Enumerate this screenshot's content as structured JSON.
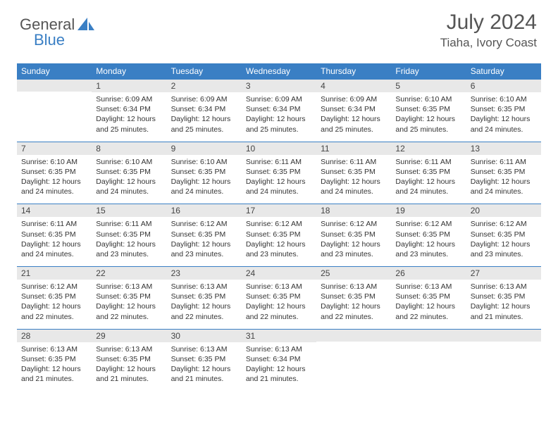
{
  "logo": {
    "text1": "General",
    "text2": "Blue"
  },
  "header": {
    "month": "July 2024",
    "location": "Tiaha, Ivory Coast"
  },
  "colors": {
    "header_bg": "#3a7fc4",
    "header_text": "#ffffff",
    "daynum_bg": "#e8e8e8",
    "body_bg": "#ffffff",
    "row_border": "#3a7fc4",
    "text": "#333333"
  },
  "calendar": {
    "days_of_week": [
      "Sunday",
      "Monday",
      "Tuesday",
      "Wednesday",
      "Thursday",
      "Friday",
      "Saturday"
    ],
    "weeks": [
      [
        null,
        {
          "n": "1",
          "sunrise": "Sunrise: 6:09 AM",
          "sunset": "Sunset: 6:34 PM",
          "dl1": "Daylight: 12 hours",
          "dl2": "and 25 minutes."
        },
        {
          "n": "2",
          "sunrise": "Sunrise: 6:09 AM",
          "sunset": "Sunset: 6:34 PM",
          "dl1": "Daylight: 12 hours",
          "dl2": "and 25 minutes."
        },
        {
          "n": "3",
          "sunrise": "Sunrise: 6:09 AM",
          "sunset": "Sunset: 6:34 PM",
          "dl1": "Daylight: 12 hours",
          "dl2": "and 25 minutes."
        },
        {
          "n": "4",
          "sunrise": "Sunrise: 6:09 AM",
          "sunset": "Sunset: 6:34 PM",
          "dl1": "Daylight: 12 hours",
          "dl2": "and 25 minutes."
        },
        {
          "n": "5",
          "sunrise": "Sunrise: 6:10 AM",
          "sunset": "Sunset: 6:35 PM",
          "dl1": "Daylight: 12 hours",
          "dl2": "and 25 minutes."
        },
        {
          "n": "6",
          "sunrise": "Sunrise: 6:10 AM",
          "sunset": "Sunset: 6:35 PM",
          "dl1": "Daylight: 12 hours",
          "dl2": "and 24 minutes."
        }
      ],
      [
        {
          "n": "7",
          "sunrise": "Sunrise: 6:10 AM",
          "sunset": "Sunset: 6:35 PM",
          "dl1": "Daylight: 12 hours",
          "dl2": "and 24 minutes."
        },
        {
          "n": "8",
          "sunrise": "Sunrise: 6:10 AM",
          "sunset": "Sunset: 6:35 PM",
          "dl1": "Daylight: 12 hours",
          "dl2": "and 24 minutes."
        },
        {
          "n": "9",
          "sunrise": "Sunrise: 6:10 AM",
          "sunset": "Sunset: 6:35 PM",
          "dl1": "Daylight: 12 hours",
          "dl2": "and 24 minutes."
        },
        {
          "n": "10",
          "sunrise": "Sunrise: 6:11 AM",
          "sunset": "Sunset: 6:35 PM",
          "dl1": "Daylight: 12 hours",
          "dl2": "and 24 minutes."
        },
        {
          "n": "11",
          "sunrise": "Sunrise: 6:11 AM",
          "sunset": "Sunset: 6:35 PM",
          "dl1": "Daylight: 12 hours",
          "dl2": "and 24 minutes."
        },
        {
          "n": "12",
          "sunrise": "Sunrise: 6:11 AM",
          "sunset": "Sunset: 6:35 PM",
          "dl1": "Daylight: 12 hours",
          "dl2": "and 24 minutes."
        },
        {
          "n": "13",
          "sunrise": "Sunrise: 6:11 AM",
          "sunset": "Sunset: 6:35 PM",
          "dl1": "Daylight: 12 hours",
          "dl2": "and 24 minutes."
        }
      ],
      [
        {
          "n": "14",
          "sunrise": "Sunrise: 6:11 AM",
          "sunset": "Sunset: 6:35 PM",
          "dl1": "Daylight: 12 hours",
          "dl2": "and 24 minutes."
        },
        {
          "n": "15",
          "sunrise": "Sunrise: 6:11 AM",
          "sunset": "Sunset: 6:35 PM",
          "dl1": "Daylight: 12 hours",
          "dl2": "and 23 minutes."
        },
        {
          "n": "16",
          "sunrise": "Sunrise: 6:12 AM",
          "sunset": "Sunset: 6:35 PM",
          "dl1": "Daylight: 12 hours",
          "dl2": "and 23 minutes."
        },
        {
          "n": "17",
          "sunrise": "Sunrise: 6:12 AM",
          "sunset": "Sunset: 6:35 PM",
          "dl1": "Daylight: 12 hours",
          "dl2": "and 23 minutes."
        },
        {
          "n": "18",
          "sunrise": "Sunrise: 6:12 AM",
          "sunset": "Sunset: 6:35 PM",
          "dl1": "Daylight: 12 hours",
          "dl2": "and 23 minutes."
        },
        {
          "n": "19",
          "sunrise": "Sunrise: 6:12 AM",
          "sunset": "Sunset: 6:35 PM",
          "dl1": "Daylight: 12 hours",
          "dl2": "and 23 minutes."
        },
        {
          "n": "20",
          "sunrise": "Sunrise: 6:12 AM",
          "sunset": "Sunset: 6:35 PM",
          "dl1": "Daylight: 12 hours",
          "dl2": "and 23 minutes."
        }
      ],
      [
        {
          "n": "21",
          "sunrise": "Sunrise: 6:12 AM",
          "sunset": "Sunset: 6:35 PM",
          "dl1": "Daylight: 12 hours",
          "dl2": "and 22 minutes."
        },
        {
          "n": "22",
          "sunrise": "Sunrise: 6:13 AM",
          "sunset": "Sunset: 6:35 PM",
          "dl1": "Daylight: 12 hours",
          "dl2": "and 22 minutes."
        },
        {
          "n": "23",
          "sunrise": "Sunrise: 6:13 AM",
          "sunset": "Sunset: 6:35 PM",
          "dl1": "Daylight: 12 hours",
          "dl2": "and 22 minutes."
        },
        {
          "n": "24",
          "sunrise": "Sunrise: 6:13 AM",
          "sunset": "Sunset: 6:35 PM",
          "dl1": "Daylight: 12 hours",
          "dl2": "and 22 minutes."
        },
        {
          "n": "25",
          "sunrise": "Sunrise: 6:13 AM",
          "sunset": "Sunset: 6:35 PM",
          "dl1": "Daylight: 12 hours",
          "dl2": "and 22 minutes."
        },
        {
          "n": "26",
          "sunrise": "Sunrise: 6:13 AM",
          "sunset": "Sunset: 6:35 PM",
          "dl1": "Daylight: 12 hours",
          "dl2": "and 22 minutes."
        },
        {
          "n": "27",
          "sunrise": "Sunrise: 6:13 AM",
          "sunset": "Sunset: 6:35 PM",
          "dl1": "Daylight: 12 hours",
          "dl2": "and 21 minutes."
        }
      ],
      [
        {
          "n": "28",
          "sunrise": "Sunrise: 6:13 AM",
          "sunset": "Sunset: 6:35 PM",
          "dl1": "Daylight: 12 hours",
          "dl2": "and 21 minutes."
        },
        {
          "n": "29",
          "sunrise": "Sunrise: 6:13 AM",
          "sunset": "Sunset: 6:35 PM",
          "dl1": "Daylight: 12 hours",
          "dl2": "and 21 minutes."
        },
        {
          "n": "30",
          "sunrise": "Sunrise: 6:13 AM",
          "sunset": "Sunset: 6:35 PM",
          "dl1": "Daylight: 12 hours",
          "dl2": "and 21 minutes."
        },
        {
          "n": "31",
          "sunrise": "Sunrise: 6:13 AM",
          "sunset": "Sunset: 6:34 PM",
          "dl1": "Daylight: 12 hours",
          "dl2": "and 21 minutes."
        },
        null,
        null,
        null
      ]
    ]
  }
}
